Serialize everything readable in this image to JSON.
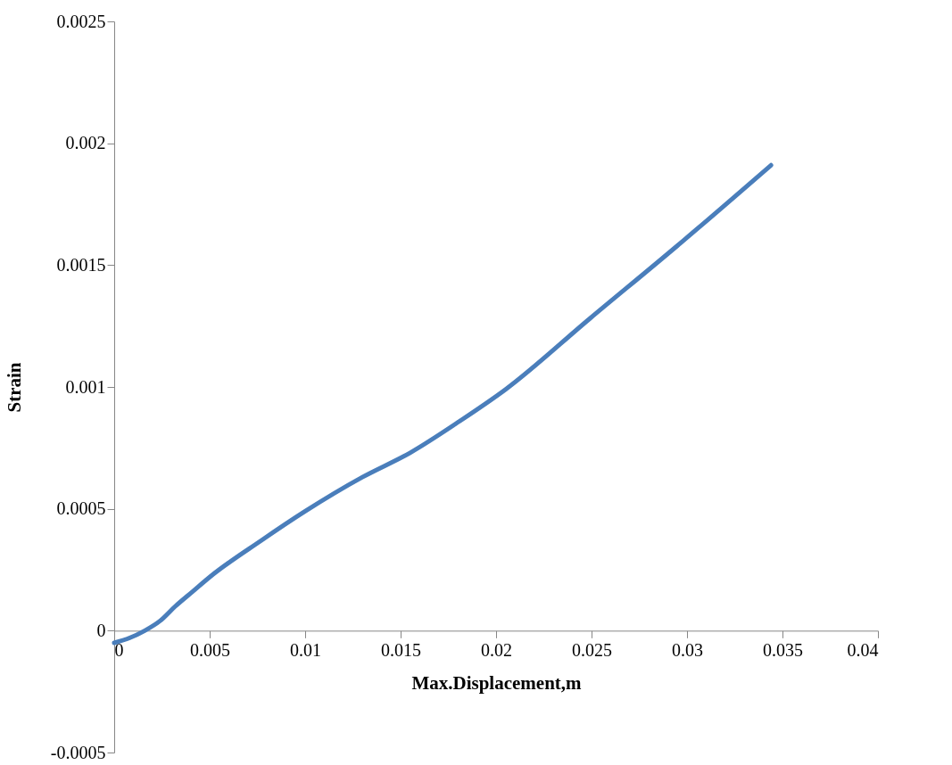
{
  "chart_data": {
    "type": "line",
    "xlabel": "Max.Displacement,m",
    "ylabel": "Strain",
    "x": [
      0,
      0.0008,
      0.0016,
      0.0024,
      0.0032,
      0.0041,
      0.005,
      0.0077,
      0.01,
      0.013,
      0.0155,
      0.0181,
      0.0205,
      0.0249,
      0.0295,
      0.0344
    ],
    "series": [
      {
        "color": "#4a7ebb",
        "values": [
          -5e-05,
          -3e-05,
          0,
          4e-05,
          0.0001,
          0.00016,
          0.00022,
          0.00037,
          0.00049,
          0.00063,
          0.00073,
          0.00086,
          0.00099,
          0.00128,
          0.00158,
          0.00191
        ]
      }
    ],
    "xlim": [
      0,
      0.04
    ],
    "xticks": [
      0,
      0.005,
      0.01,
      0.015,
      0.02,
      0.025,
      0.03,
      0.035,
      0.04
    ],
    "ylim": [
      -0.0005,
      0.0025
    ],
    "yticks": [
      -0.0005,
      0,
      0.0005,
      0.001,
      0.0015,
      0.002,
      0.0025
    ],
    "grid": false,
    "legend": false,
    "marker": "none",
    "line_style": "solid"
  }
}
